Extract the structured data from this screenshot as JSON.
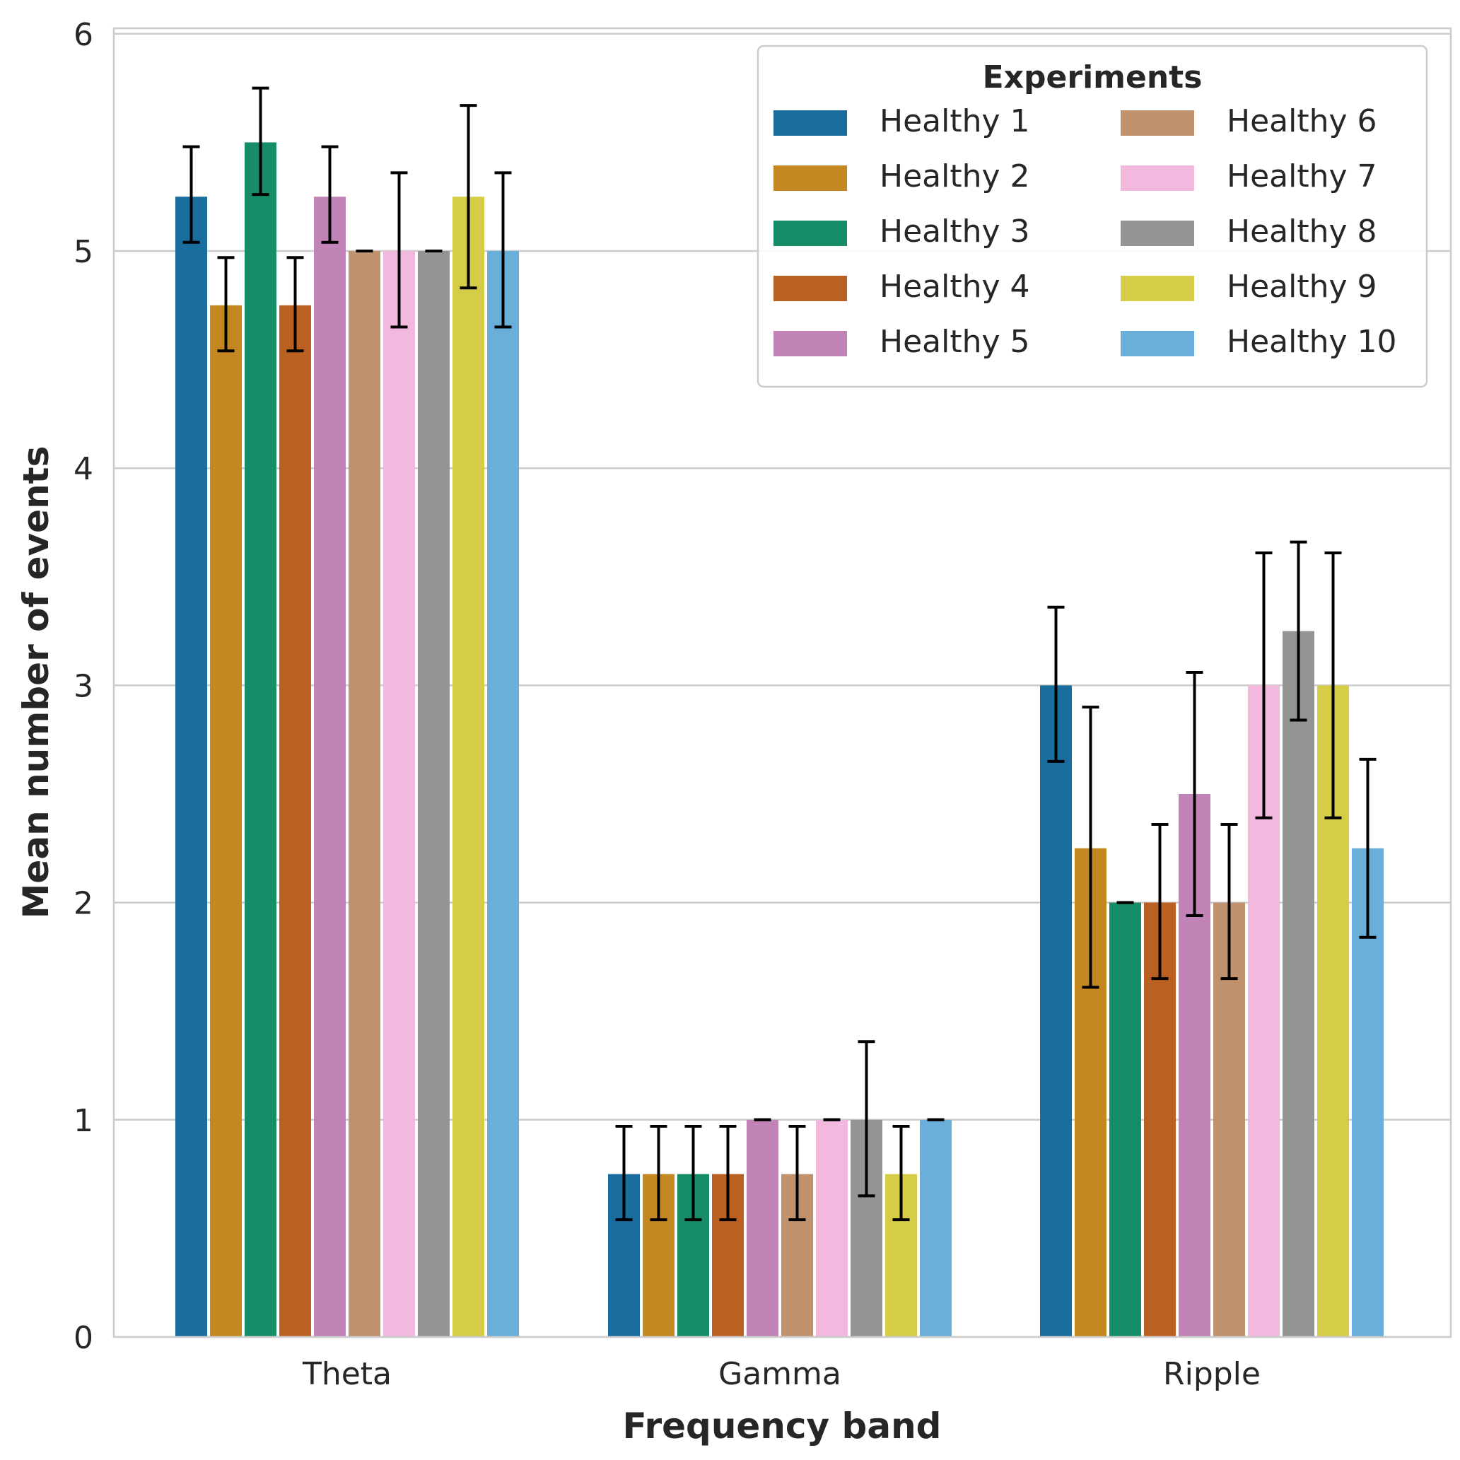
{
  "chart_data": {
    "type": "bar",
    "title": "",
    "xlabel": "Frequency band",
    "ylabel": "Mean number of events",
    "categories": [
      "Theta",
      "Gamma",
      "Ripple"
    ],
    "ylim": [
      0,
      6
    ],
    "yticks": [
      "0",
      "1",
      "2",
      "3",
      "4",
      "5",
      "6"
    ],
    "grid": "horizontal",
    "legend": {
      "title": "Experiments",
      "placement": "top-right",
      "columns": 2
    },
    "series": [
      {
        "name": "Healthy 1",
        "color": "#1a6e9e",
        "values": [
          5.25,
          0.75,
          3.0
        ],
        "err_low": [
          5.04,
          0.54,
          2.65
        ],
        "err_high": [
          5.48,
          0.97,
          3.36
        ]
      },
      {
        "name": "Healthy 2",
        "color": "#c58722",
        "values": [
          4.75,
          0.75,
          2.25
        ],
        "err_low": [
          4.54,
          0.54,
          1.61
        ],
        "err_high": [
          4.97,
          0.97,
          2.9
        ]
      },
      {
        "name": "Healthy 3",
        "color": "#178c68",
        "values": [
          5.5,
          0.75,
          2.0
        ],
        "err_low": [
          5.26,
          0.54,
          2.0
        ],
        "err_high": [
          5.75,
          0.97,
          2.0
        ]
      },
      {
        "name": "Healthy 4",
        "color": "#ba6020",
        "values": [
          4.75,
          0.75,
          2.0
        ],
        "err_low": [
          4.54,
          0.54,
          1.65
        ],
        "err_high": [
          4.97,
          0.97,
          2.36
        ]
      },
      {
        "name": "Healthy 5",
        "color": "#c283b7",
        "values": [
          5.25,
          1.0,
          2.5
        ],
        "err_low": [
          5.04,
          1.0,
          1.94
        ],
        "err_high": [
          5.48,
          1.0,
          3.06
        ]
      },
      {
        "name": "Healthy 6",
        "color": "#c0926e",
        "values": [
          5.0,
          0.75,
          2.0
        ],
        "err_low": [
          5.0,
          0.54,
          1.65
        ],
        "err_high": [
          5.0,
          0.97,
          2.36
        ]
      },
      {
        "name": "Healthy 7",
        "color": "#f2b8de",
        "values": [
          5.0,
          1.0,
          3.0
        ],
        "err_low": [
          4.65,
          1.0,
          2.39
        ],
        "err_high": [
          5.36,
          1.0,
          3.61
        ]
      },
      {
        "name": "Healthy 8",
        "color": "#949494",
        "values": [
          5.0,
          1.0,
          3.25
        ],
        "err_low": [
          5.0,
          0.65,
          2.84
        ],
        "err_high": [
          5.0,
          1.36,
          3.66
        ]
      },
      {
        "name": "Healthy 9",
        "color": "#d5cd48",
        "values": [
          5.25,
          0.75,
          3.0
        ],
        "err_low": [
          4.83,
          0.54,
          2.39
        ],
        "err_high": [
          5.67,
          0.97,
          3.61
        ]
      },
      {
        "name": "Healthy 10",
        "color": "#6aafd9",
        "values": [
          5.0,
          1.0,
          2.25
        ],
        "err_low": [
          4.65,
          1.0,
          1.84
        ],
        "err_high": [
          5.36,
          1.0,
          2.66
        ]
      }
    ]
  }
}
